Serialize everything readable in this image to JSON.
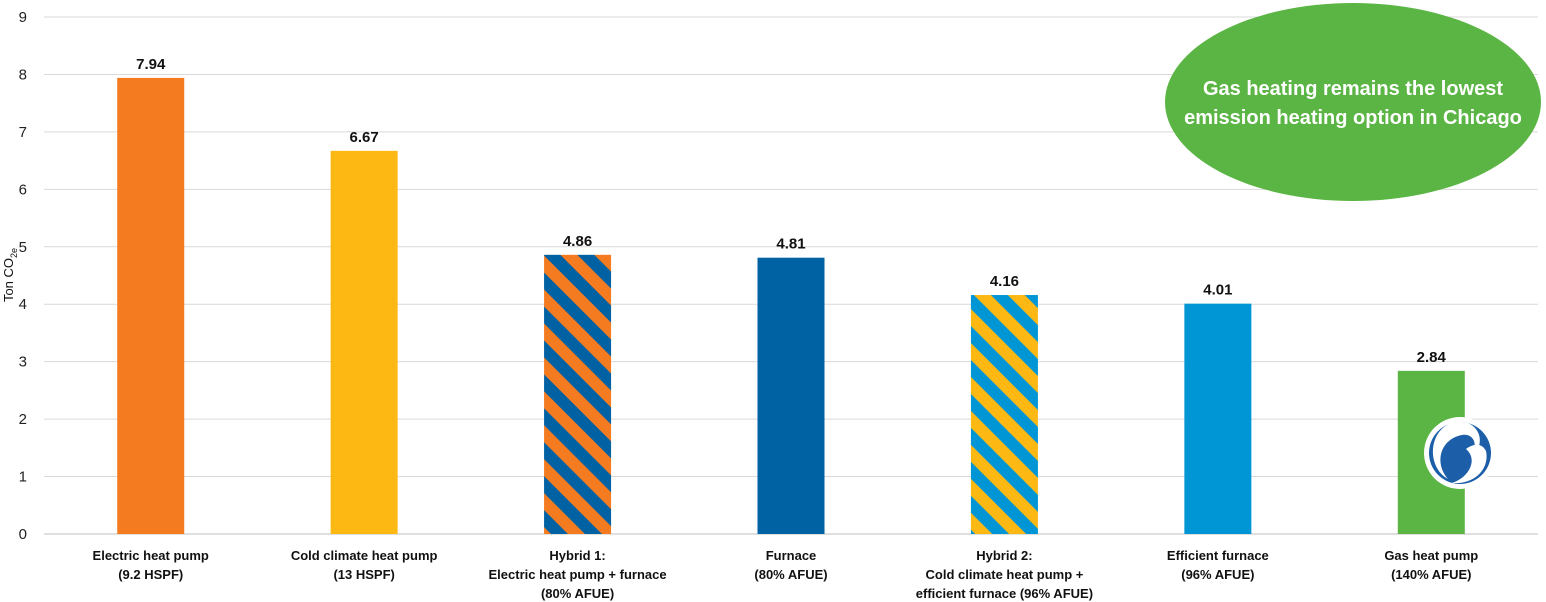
{
  "chart_data": {
    "type": "bar",
    "title": "",
    "ylabel": "Ton CO2e",
    "ylabel_main": "Ton CO",
    "ylabel_sub": "2e",
    "ylim": [
      0,
      9
    ],
    "yticks": [
      "0",
      "1",
      "2",
      "3",
      "4",
      "5",
      "6",
      "7",
      "8",
      "9"
    ],
    "grid": true,
    "categories": [
      [
        "Electric heat pump",
        "(9.2 HSPF)"
      ],
      [
        "Cold climate heat pump",
        "(13 HSPF)"
      ],
      [
        "Hybrid 1:",
        "Electric heat pump + furnace",
        "(80% AFUE)"
      ],
      [
        "Furnace",
        "(80% AFUE)"
      ],
      [
        "Hybrid 2:",
        "Cold climate heat pump +",
        "efficient furnace (96% AFUE)"
      ],
      [
        "Efficient furnace",
        "(96% AFUE)"
      ],
      [
        "Gas heat pump",
        "(140% AFUE)"
      ]
    ],
    "values": [
      7.94,
      6.67,
      4.86,
      4.81,
      4.16,
      4.01,
      2.84
    ],
    "value_labels": [
      "7.94",
      "6.67",
      "4.86",
      "4.81",
      "4.16",
      "4.01",
      "2.84"
    ],
    "bar_styles": [
      {
        "fill": "#F47B20"
      },
      {
        "fill": "#FDB813"
      },
      {
        "stripe": [
          "#F47B20",
          "#0061A3"
        ]
      },
      {
        "fill": "#0061A3"
      },
      {
        "stripe": [
          "#FDB813",
          "#0096D6"
        ]
      },
      {
        "fill": "#0096D6"
      },
      {
        "fill": "#5BB544"
      }
    ],
    "annotation": {
      "lines": [
        "Gas heating remains the lowest",
        "emission heating option in Chicago"
      ],
      "color": "#5BB544"
    }
  },
  "colors": {
    "grid": "#d9d9d9",
    "axis": "#bfbfbf",
    "logo_blue": "#1C5FA8"
  },
  "icons": {
    "logo": "gas-flame-logo-icon"
  }
}
